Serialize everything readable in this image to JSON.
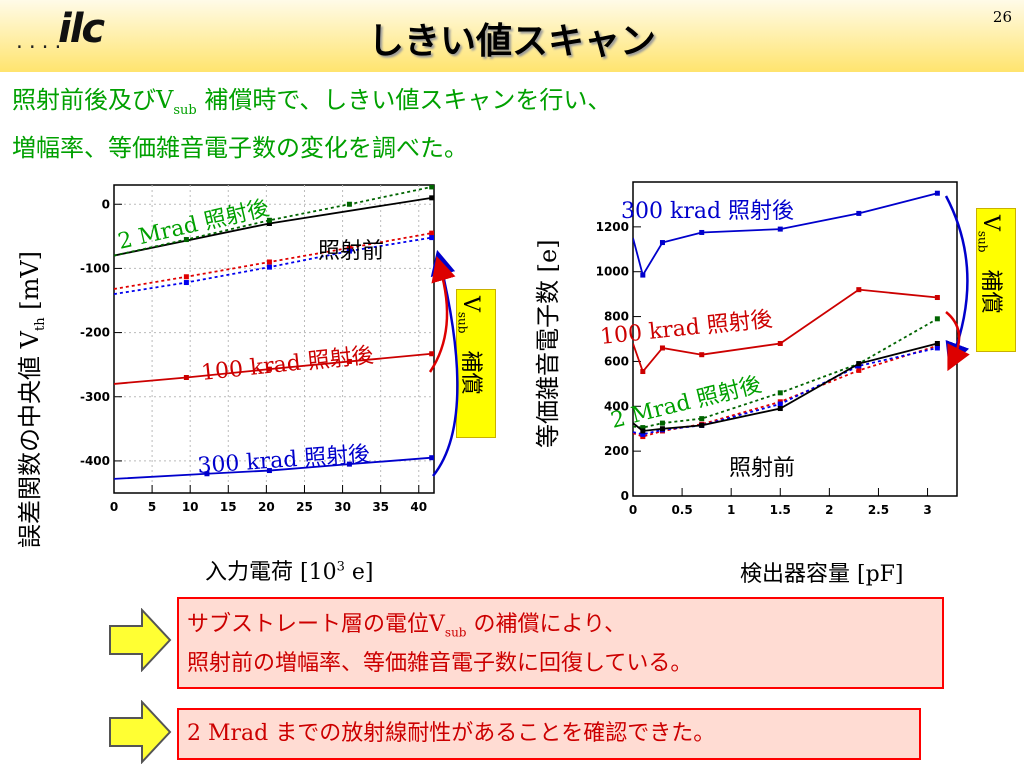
{
  "header": {
    "logo_dots": "....",
    "logo": "ilc",
    "title": "しきい値スキャン",
    "page_number": "26"
  },
  "intro": {
    "line1_a": "照射前後及び",
    "line1_v": "V",
    "line1_sub": "sub",
    "line1_b": " 補償時で、しきい値スキャンを行い、",
    "line2": "増幅率、等価雑音電子数の変化を調べた。"
  },
  "left_chart": {
    "ylabel_a": "誤差関数の中央値 ",
    "ylabel_v": "V",
    "ylabel_sub": "th",
    "ylabel_unit": " [mV]",
    "xlabel_a": "入力電荷 ",
    "xlabel_unit": "[10",
    "xlabel_sup": "3",
    "xlabel_end": " e]",
    "vsub_v": "V",
    "vsub_sub": "sub",
    "vsub_word": "補償"
  },
  "right_chart": {
    "ylabel_a": "等価雑音電子数 ",
    "ylabel_unit": "[e]",
    "xlabel_a": "検出器容量 ",
    "xlabel_unit": "[pF]",
    "vsub_v": "V",
    "vsub_sub": "sub",
    "vsub_word": "補償"
  },
  "conclusions": {
    "box1_a": "サブストレート層の電位",
    "box1_v": "V",
    "box1_sub": "sub",
    "box1_b": " の補償により、",
    "box1_line2": "照射前の増幅率、等価雑音電子数に回復している。",
    "box2_num": "2 Mrad",
    "box2_text": " までの放射線耐性があることを確認できた。"
  },
  "colors": {
    "green": "#00a000",
    "black": "#000000",
    "red": "#cc0000",
    "blue": "#0000cc",
    "yellow": "#ffff00",
    "box_fill": "#ffdcd3",
    "box_border": "#ff0000"
  },
  "chart_data": [
    {
      "type": "line",
      "xlim": [
        0,
        42
      ],
      "ylim": [
        -450,
        30
      ],
      "xticks": [
        0,
        5,
        10,
        15,
        20,
        25,
        30,
        35,
        40
      ],
      "yticks": [
        0,
        -100,
        -200,
        -300,
        -400
      ],
      "series": [
        {
          "name": "照射前",
          "label_text": "照射前",
          "label_color": "black",
          "color": "#000000",
          "dash": false,
          "x": [
            0,
            20.4,
            41.7
          ],
          "y": [
            -80,
            -30,
            10
          ]
        },
        {
          "name": "2 Mrad 照射後",
          "label_num": "2 Mrad",
          "label_word": "照射後",
          "label_color": "green",
          "color": "#006400",
          "dash": true,
          "x": [
            0,
            9.5,
            20.4,
            30.9,
            41.7
          ],
          "y": [
            -80,
            -55,
            -25,
            0,
            27
          ]
        },
        {
          "name": "100 krad 照射後 (Vsub補償)",
          "color": "#e00000",
          "dash": true,
          "x": [
            0,
            9.5,
            20.4,
            30.9,
            41.7
          ],
          "y": [
            -132,
            -113,
            -90,
            -68,
            -45
          ]
        },
        {
          "name": "300 krad 照射後 (Vsub補償)",
          "color": "#0000ee",
          "dash": true,
          "x": [
            0,
            9.5,
            20.4,
            30.9,
            41.7
          ],
          "y": [
            -140,
            -122,
            -98,
            -73,
            -52
          ]
        },
        {
          "name": "100 krad 照射後",
          "label_num": "100 krad",
          "label_word": "照射後",
          "label_color": "red",
          "color": "#cc0000",
          "dash": false,
          "x": [
            0,
            9.5,
            20.4,
            30.9,
            41.7
          ],
          "y": [
            -280,
            -270,
            -257,
            -245,
            -233
          ]
        },
        {
          "name": "300 krad 照射後",
          "label_num": "300 krad",
          "label_word": "照射後",
          "label_color": "blue",
          "color": "#0000cc",
          "dash": false,
          "x": [
            0,
            12.2,
            20.4,
            30.9,
            41.7
          ],
          "y": [
            -428,
            -420,
            -415,
            -405,
            -395
          ]
        }
      ]
    },
    {
      "type": "line",
      "xlim": [
        0,
        3.3
      ],
      "ylim": [
        0,
        1400
      ],
      "xticks": [
        0,
        0.5,
        1,
        1.5,
        2,
        2.5,
        3
      ],
      "yticks": [
        0,
        200,
        400,
        600,
        800,
        1000,
        1200
      ],
      "series": [
        {
          "name": "300 krad 照射後",
          "label_num": "300 krad",
          "label_word": "照射後",
          "label_color": "blue",
          "color": "#0000cc",
          "dash": false,
          "x": [
            0,
            0.1,
            0.3,
            0.7,
            1.5,
            2.3,
            3.1
          ],
          "y": [
            1150,
            985,
            1130,
            1175,
            1190,
            1260,
            1350
          ]
        },
        {
          "name": "100 krad 照射後",
          "label_num": "100 krad",
          "label_word": "照射後",
          "label_color": "red",
          "color": "#cc0000",
          "dash": false,
          "x": [
            0,
            0.1,
            0.3,
            0.7,
            1.5,
            2.3,
            3.1
          ],
          "y": [
            680,
            555,
            660,
            630,
            680,
            920,
            885
          ]
        },
        {
          "name": "2 Mrad 照射後",
          "label_num": "2 Mrad",
          "label_word": "照射後",
          "label_color": "green",
          "color": "#006400",
          "dash": true,
          "x": [
            0,
            0.1,
            0.3,
            0.7,
            1.5,
            2.3,
            3.1
          ],
          "y": [
            310,
            305,
            325,
            345,
            460,
            590,
            790
          ]
        },
        {
          "name": "100 krad 照射後 (Vsub補償)",
          "color": "#e00000",
          "dash": true,
          "x": [
            0,
            0.1,
            0.3,
            0.7,
            1.5,
            2.3,
            3.1
          ],
          "y": [
            280,
            265,
            290,
            320,
            420,
            560,
            670
          ]
        },
        {
          "name": "300 krad 照射後 (Vsub補償)",
          "color": "#0000ee",
          "dash": true,
          "x": [
            0,
            0.1,
            0.3,
            0.7,
            1.5,
            2.3,
            3.1
          ],
          "y": [
            285,
            275,
            295,
            315,
            410,
            580,
            660
          ]
        },
        {
          "name": "照射前",
          "label_text": "照射前",
          "label_color": "black",
          "color": "#000000",
          "dash": false,
          "x": [
            0,
            0.1,
            0.3,
            0.7,
            1.5,
            2.3,
            3.1
          ],
          "y": [
            325,
            290,
            300,
            315,
            390,
            590,
            680
          ]
        }
      ]
    }
  ]
}
